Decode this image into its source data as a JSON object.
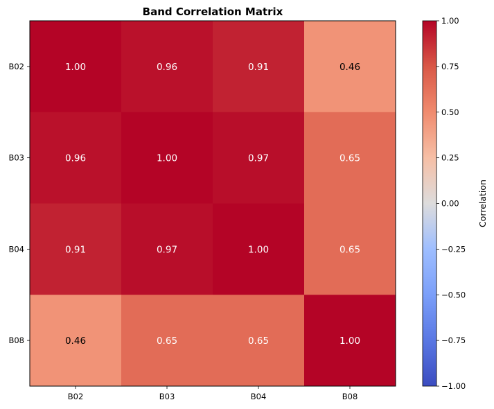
{
  "chart_data": {
    "type": "heatmap",
    "title": "Band Correlation Matrix",
    "x_categories": [
      "B02",
      "B03",
      "B04",
      "B08"
    ],
    "y_categories": [
      "B02",
      "B03",
      "B04",
      "B08"
    ],
    "values": [
      [
        1.0,
        0.96,
        0.91,
        0.46
      ],
      [
        0.96,
        1.0,
        0.97,
        0.65
      ],
      [
        0.91,
        0.97,
        1.0,
        0.65
      ],
      [
        0.46,
        0.65,
        0.65,
        1.0
      ]
    ],
    "value_format": "2 decimals",
    "colormap": "coolwarm",
    "colorbar": {
      "label": "Correlation",
      "vmin": -1.0,
      "vmax": 1.0,
      "ticks": [
        "1.00",
        "0.75",
        "0.50",
        "0.25",
        "0.00",
        "−0.25",
        "−0.50",
        "−0.75",
        "−1.00"
      ]
    }
  }
}
